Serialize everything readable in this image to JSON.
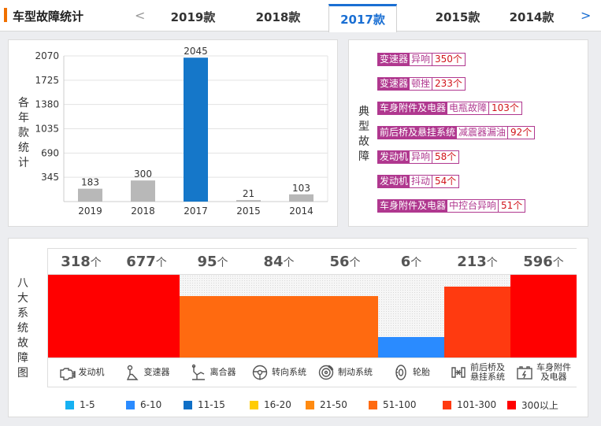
{
  "header": {
    "title": "车型故障统计",
    "prev_arrow": "<",
    "next_arrow": ">",
    "tabs": [
      {
        "label": "2019款",
        "active": false
      },
      {
        "label": "2018款",
        "active": false
      },
      {
        "label": "2017款",
        "active": true
      },
      {
        "label": "2015款",
        "active": false
      },
      {
        "label": "2014款",
        "active": false
      }
    ]
  },
  "chart_panel": {
    "ylabel": "各年款统计",
    "chart_data": {
      "type": "bar",
      "categories": [
        "2019",
        "2018",
        "2017",
        "2015",
        "2014"
      ],
      "values": [
        183,
        300,
        2045,
        21,
        103
      ],
      "highlight_index": 2,
      "yticks": [
        345,
        690,
        1035,
        1380,
        1725,
        2070
      ],
      "ylim": [
        0,
        2070
      ],
      "grid": true,
      "colors": {
        "default": "#b8b8b8",
        "highlight": "#1577c9"
      }
    }
  },
  "fault_panel": {
    "label": "典型故障",
    "items": [
      {
        "part": "变速器",
        "issue": "异响",
        "count": "350个"
      },
      {
        "part": "变速器",
        "issue": "顿挫",
        "count": "233个"
      },
      {
        "part": "车身附件及电器",
        "issue": "电瓶故障",
        "count": "103个"
      },
      {
        "part": "前后桥及悬挂系统",
        "issue": "减震器漏油",
        "count": "92个"
      },
      {
        "part": "发动机",
        "issue": "异响",
        "count": "58个"
      },
      {
        "part": "发动机",
        "issue": "抖动",
        "count": "54个"
      },
      {
        "part": "车身附件及电器",
        "issue": "中控台异响",
        "count": "51个"
      }
    ]
  },
  "systems_panel": {
    "label": "八大系统故障图",
    "unit": "个",
    "systems": [
      {
        "name": "发动机",
        "count": "318",
        "level": 1.0,
        "color": "#ff0000",
        "icon": "engine-icon"
      },
      {
        "name": "变速器",
        "count": "677",
        "level": 1.0,
        "color": "#ff0000",
        "icon": "gear-shift-icon"
      },
      {
        "name": "离合器",
        "count": "95",
        "level": 0.74,
        "color": "#ff6a10",
        "icon": "clutch-pedal-icon"
      },
      {
        "name": "转向系统",
        "count": "84",
        "level": 0.74,
        "color": "#ff6a10",
        "icon": "steering-wheel-icon"
      },
      {
        "name": "制动系统",
        "count": "56",
        "level": 0.74,
        "color": "#ff6a10",
        "icon": "brake-disc-icon"
      },
      {
        "name": "轮胎",
        "count": "6",
        "level": 0.25,
        "color": "#2a8bff",
        "icon": "tire-icon"
      },
      {
        "name": "前后桥及悬挂系统",
        "name_lines": [
          "前后桥及",
          "悬挂系统"
        ],
        "count": "213",
        "level": 0.86,
        "color": "#ff3a10",
        "icon": "suspension-icon"
      },
      {
        "name": "车身附件及电器",
        "name_lines": [
          "车身附件",
          "及电器"
        ],
        "count": "596",
        "level": 1.0,
        "color": "#ff0000",
        "icon": "car-battery-icon"
      }
    ],
    "legend": [
      {
        "label": "1-5",
        "color": "#16b1f2"
      },
      {
        "label": "6-10",
        "color": "#2a8bff"
      },
      {
        "label": "11-15",
        "color": "#0f6fc6"
      },
      {
        "label": "16-20",
        "color": "#ffcc00"
      },
      {
        "label": "21-50",
        "color": "#ff8a10"
      },
      {
        "label": "51-100",
        "color": "#ff6a10"
      },
      {
        "label": "101-300",
        "color": "#ff3a10"
      },
      {
        "label": "300以上",
        "color": "#ff0000"
      }
    ]
  }
}
